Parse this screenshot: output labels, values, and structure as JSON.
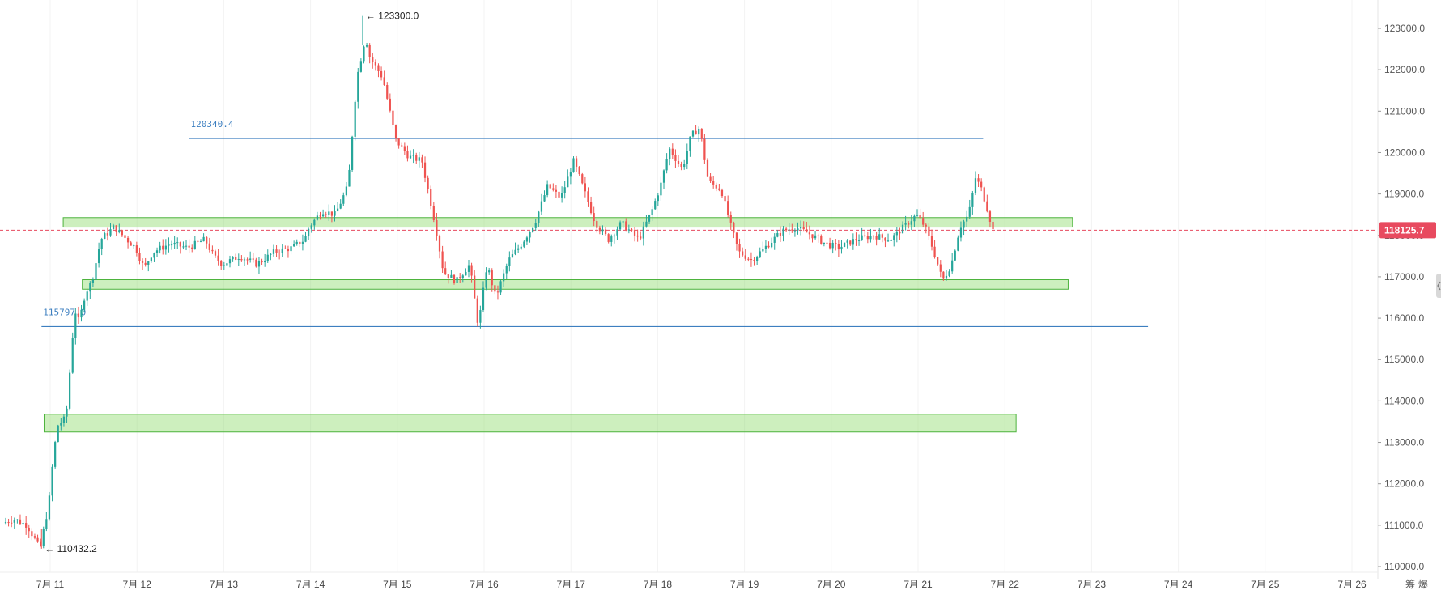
{
  "chart_data": {
    "type": "candlestick",
    "title": "",
    "xlabel": "",
    "ylabel": "",
    "x_tick_labels": [
      "7月 11",
      "7月 12",
      "7月 13",
      "7月 14",
      "7月 15",
      "7月 16",
      "7月 17",
      "7月 18",
      "7月 19",
      "7月 20",
      "7月 21",
      "7月 22",
      "7月 23",
      "7月 24",
      "7月 25",
      "7月 26"
    ],
    "y_tick_labels": [
      "110000.0",
      "111000.0",
      "112000.0",
      "113000.0",
      "114000.0",
      "115000.0",
      "116000.0",
      "117000.0",
      "118000.0",
      "119000.0",
      "120000.0",
      "121000.0",
      "122000.0",
      "123000.0"
    ],
    "ylim": [
      109850,
      123650
    ],
    "xlim_days": [
      10.47,
      26.18
    ],
    "x_start_label": "7月 10",
    "current_price": 118125.7,
    "current_price_label": "118125.7",
    "extremes": {
      "high": {
        "label": "123300.0",
        "value": 123300.0,
        "day": 14.6
      },
      "low": {
        "label": "110432.2",
        "value": 110432.2,
        "day": 10.9
      }
    },
    "horizontal_lines": [
      {
        "label": "120340.4",
        "value": 120340.4,
        "x_from_day": 12.6,
        "x_to_day": 21.75
      },
      {
        "label": "115797.0",
        "value": 115797.0,
        "x_from_day": 10.9,
        "x_to_day": 23.65
      }
    ],
    "support_zones": [
      {
        "y_low": 118200,
        "y_high": 118430,
        "x_from_day": 11.15,
        "x_to_day": 22.78
      },
      {
        "y_low": 116700,
        "y_high": 116930,
        "x_from_day": 11.37,
        "x_to_day": 22.73
      },
      {
        "y_low": 113250,
        "y_high": 113680,
        "x_from_day": 10.93,
        "x_to_day": 22.13
      }
    ],
    "key_points": [
      [
        10.47,
        111050
      ],
      [
        10.6,
        111150
      ],
      [
        10.75,
        111000
      ],
      [
        10.9,
        110432
      ],
      [
        11.0,
        111500
      ],
      [
        11.05,
        112600
      ],
      [
        11.1,
        113400
      ],
      [
        11.2,
        113600
      ],
      [
        11.3,
        116200
      ],
      [
        11.35,
        115900
      ],
      [
        11.42,
        116600
      ],
      [
        11.5,
        116900
      ],
      [
        11.6,
        117900
      ],
      [
        11.75,
        118200
      ],
      [
        11.85,
        118000
      ],
      [
        12.0,
        117700
      ],
      [
        12.1,
        117200
      ],
      [
        12.2,
        117600
      ],
      [
        12.4,
        117800
      ],
      [
        12.6,
        117700
      ],
      [
        12.8,
        117900
      ],
      [
        12.9,
        117500
      ],
      [
        13.0,
        117300
      ],
      [
        13.2,
        117500
      ],
      [
        13.4,
        117300
      ],
      [
        13.6,
        117600
      ],
      [
        13.8,
        117700
      ],
      [
        13.95,
        117900
      ],
      [
        14.0,
        118200
      ],
      [
        14.15,
        118600
      ],
      [
        14.3,
        118500
      ],
      [
        14.45,
        119200
      ],
      [
        14.55,
        121800
      ],
      [
        14.65,
        122800
      ],
      [
        14.7,
        122300
      ],
      [
        14.85,
        121800
      ],
      [
        15.0,
        120300
      ],
      [
        15.15,
        119900
      ],
      [
        15.3,
        119800
      ],
      [
        15.45,
        118300
      ],
      [
        15.55,
        117100
      ],
      [
        15.7,
        116900
      ],
      [
        15.85,
        117300
      ],
      [
        15.95,
        115800
      ],
      [
        16.05,
        117300
      ],
      [
        16.15,
        116500
      ],
      [
        16.3,
        117400
      ],
      [
        16.45,
        117800
      ],
      [
        16.6,
        118300
      ],
      [
        16.75,
        119200
      ],
      [
        16.9,
        118900
      ],
      [
        17.05,
        119800
      ],
      [
        17.2,
        118900
      ],
      [
        17.3,
        118300
      ],
      [
        17.45,
        117900
      ],
      [
        17.6,
        118300
      ],
      [
        17.8,
        117900
      ],
      [
        17.95,
        118600
      ],
      [
        18.05,
        119200
      ],
      [
        18.15,
        120100
      ],
      [
        18.3,
        119600
      ],
      [
        18.4,
        120400
      ],
      [
        18.5,
        120600
      ],
      [
        18.6,
        119300
      ],
      [
        18.75,
        119100
      ],
      [
        18.85,
        118300
      ],
      [
        18.95,
        117600
      ],
      [
        19.1,
        117400
      ],
      [
        19.25,
        117700
      ],
      [
        19.45,
        118100
      ],
      [
        19.6,
        118200
      ],
      [
        19.8,
        118000
      ],
      [
        19.95,
        117800
      ],
      [
        20.1,
        117700
      ],
      [
        20.3,
        117900
      ],
      [
        20.5,
        118000
      ],
      [
        20.7,
        117900
      ],
      [
        20.85,
        118200
      ],
      [
        21.0,
        118500
      ],
      [
        21.1,
        118200
      ],
      [
        21.2,
        117600
      ],
      [
        21.3,
        116900
      ],
      [
        21.4,
        117300
      ],
      [
        21.5,
        118200
      ],
      [
        21.6,
        118500
      ],
      [
        21.68,
        119400
      ],
      [
        21.75,
        119100
      ],
      [
        21.82,
        118600
      ],
      [
        21.88,
        118125.7
      ]
    ]
  },
  "price_tag_color": "#e84a5f",
  "bull_color": "#26a69a",
  "bear_color": "#ef5350",
  "corner_label": "筹 爆"
}
